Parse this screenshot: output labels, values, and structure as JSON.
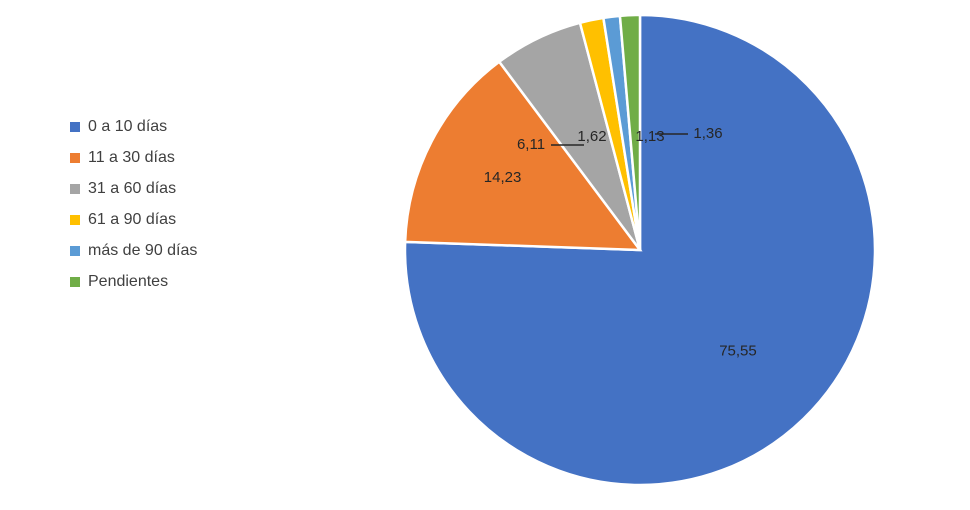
{
  "chart_data": {
    "type": "pie",
    "title": "",
    "legend_position": "left",
    "slices": [
      {
        "label": "0 a 10 días",
        "value": 75.55,
        "value_label": "75,55",
        "color": "#4472C4"
      },
      {
        "label": "11 a 30 días",
        "value": 14.23,
        "value_label": "14,23",
        "color": "#ED7D31"
      },
      {
        "label": "31 a 60 días",
        "value": 6.11,
        "value_label": "6,11",
        "color": "#A5A5A5"
      },
      {
        "label": "61 a 90 días",
        "value": 1.62,
        "value_label": "1,62",
        "color": "#FFC000"
      },
      {
        "label": "más de 90 días",
        "value": 1.13,
        "value_label": "1,13",
        "color": "#5B9BD5"
      },
      {
        "label": "Pendientes",
        "value": 1.36,
        "value_label": "1,36",
        "color": "#70AD47"
      }
    ]
  }
}
